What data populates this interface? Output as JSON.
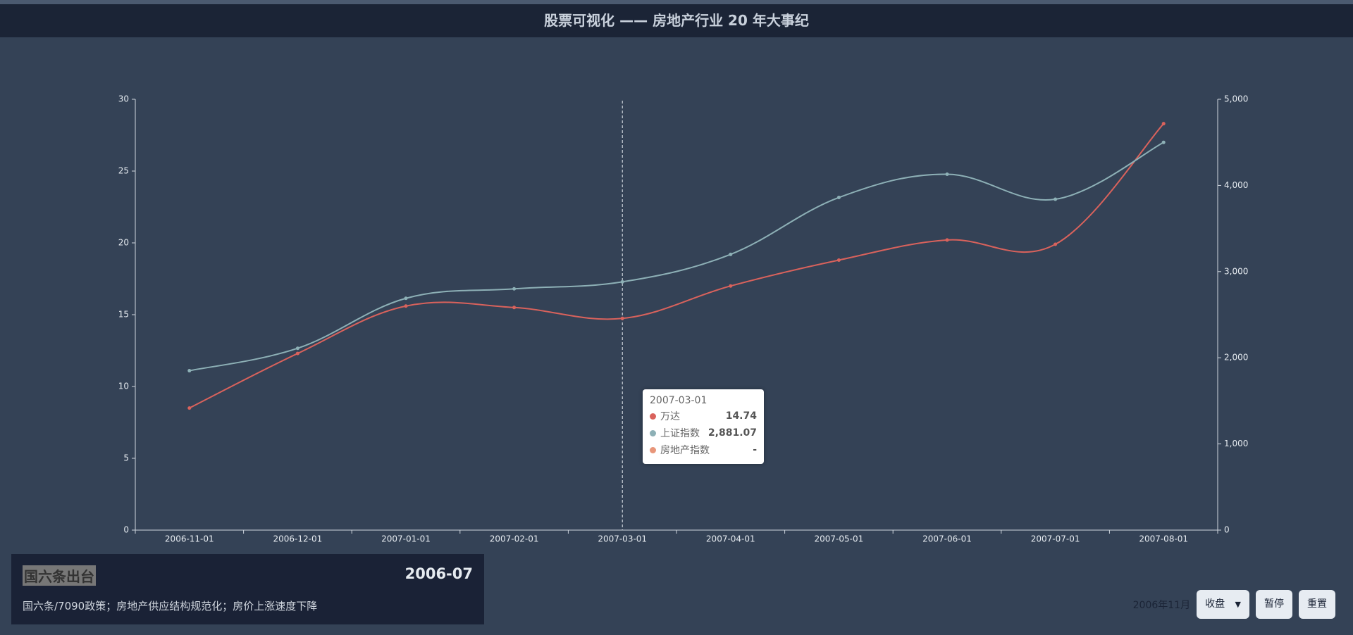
{
  "header": {
    "title": "股票可视化 —— 房地产行业 20 年大事纪"
  },
  "chart_data": {
    "type": "line",
    "categories": [
      "2006-11-01",
      "2006-12-01",
      "2007-01-01",
      "2007-02-01",
      "2007-03-01",
      "2007-04-01",
      "2007-05-01",
      "2007-06-01",
      "2007-07-01",
      "2007-08-01"
    ],
    "series": [
      {
        "name": "万达",
        "color": "#d9625c",
        "values": [
          8.5,
          12.3,
          15.6,
          15.5,
          14.74,
          17.0,
          18.8,
          20.2,
          19.9,
          28.3
        ]
      },
      {
        "name": "上证指数",
        "color": "#8db0b6",
        "axis": "y2",
        "values": [
          1850,
          2110,
          2690,
          2800,
          2881.07,
          3200,
          3860,
          4130,
          3840,
          4500
        ]
      },
      {
        "name": "房地产指数",
        "color": "#e8967a",
        "values": [
          null,
          null,
          null,
          null,
          null,
          null,
          null,
          null,
          null,
          null
        ]
      }
    ],
    "ylim": [
      0,
      30
    ],
    "yticks": [
      0,
      5,
      10,
      15,
      20,
      25,
      30
    ],
    "y2lim": [
      0,
      5000
    ],
    "y2ticks": [
      0,
      {
        "value": 1000,
        "label": "1,000"
      },
      {
        "value": 2000,
        "label": "2,000"
      },
      {
        "value": 3000,
        "label": "3,000"
      },
      {
        "value": 4000,
        "label": "4,000"
      },
      {
        "value": 5000,
        "label": "5,000"
      }
    ],
    "grid": false,
    "crosshair_index": 4,
    "tooltip": {
      "title": "2007-03-01",
      "items": [
        {
          "name": "万达",
          "value": "14.74"
        },
        {
          "name": "上证指数",
          "value": "2,881.07"
        },
        {
          "name": "房地产指数",
          "value": "-"
        }
      ]
    }
  },
  "event_card": {
    "title": "国六条出台",
    "date": "2006-07",
    "description": "国六条/7090政策；房地产供应结构规范化；房价上涨速度下降"
  },
  "controls": {
    "current_month": "2006年11月",
    "mode": "收盘",
    "pause": "暂停",
    "reset": "重置"
  }
}
